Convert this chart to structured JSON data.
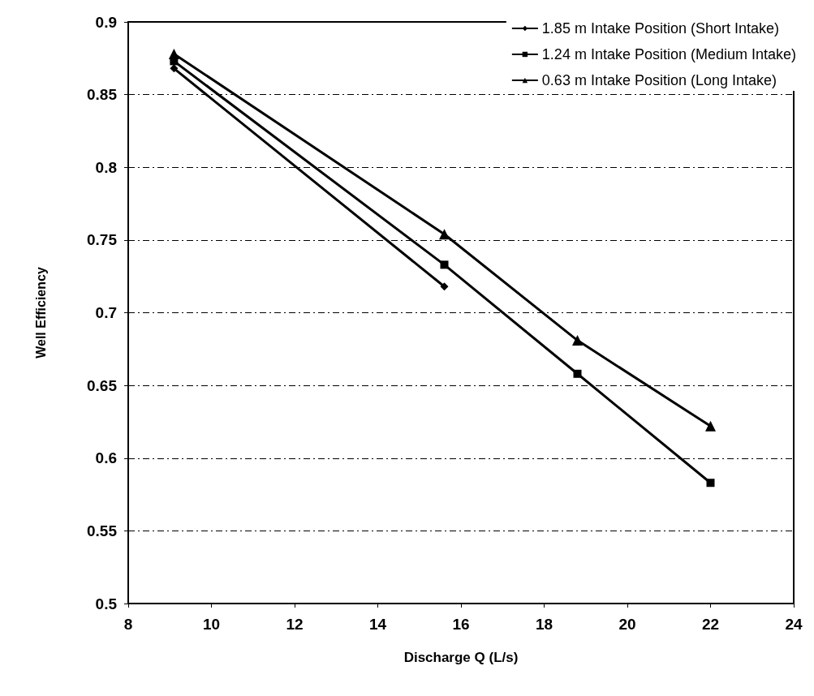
{
  "chart_data": {
    "type": "line",
    "xlabel": "Discharge Q (L/s)",
    "ylabel": "Well Efficiency",
    "xlim": [
      8,
      24
    ],
    "xticks": [
      8,
      10,
      12,
      14,
      16,
      18,
      20,
      22,
      24
    ],
    "ylim": [
      0.5,
      0.9
    ],
    "yticks": [
      0.5,
      0.55,
      0.6,
      0.65,
      0.7,
      0.75,
      0.8,
      0.85,
      0.9
    ],
    "grid": "y",
    "legend": "top right",
    "series": [
      {
        "name": "1.85 m Intake Position (Short Intake)",
        "color": "#000000",
        "marker": "diamond",
        "x": [
          9.1,
          15.6
        ],
        "values": [
          0.868,
          0.718
        ]
      },
      {
        "name": "1.24 m Intake Position (Medium Intake)",
        "color": "#000000",
        "marker": "square",
        "x": [
          9.1,
          15.6,
          18.8,
          22.0
        ],
        "values": [
          0.873,
          0.733,
          0.658,
          0.583
        ]
      },
      {
        "name": "0.63 m Intake Position (Long Intake)",
        "color": "#000000",
        "marker": "triangle",
        "x": [
          9.1,
          15.6,
          18.8,
          22.0
        ],
        "values": [
          0.878,
          0.754,
          0.681,
          0.622
        ]
      }
    ]
  }
}
